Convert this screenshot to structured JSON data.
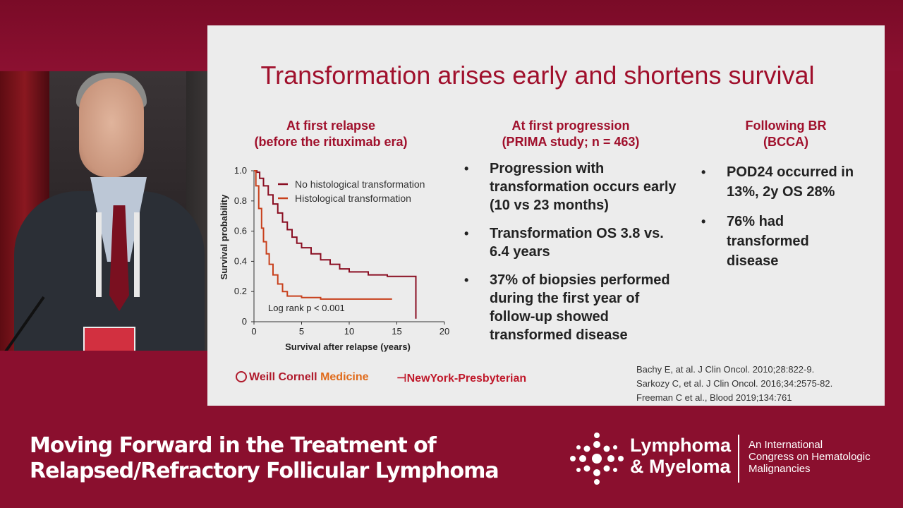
{
  "slide": {
    "title": "Transformation arises early and shortens survival",
    "columns": [
      {
        "heading_line1": "At first relapse",
        "heading_line2": "(before the rituximab era)"
      },
      {
        "heading_line1": "At first progression",
        "heading_line2": "(PRIMA study; n = 463)",
        "bullets": [
          "Progression with transformation occurs early (10 vs 23 months)",
          "Transformation OS 3.8 vs. 6.4 years",
          "37% of biopsies performed during the first year of follow-up showed transformed disease"
        ]
      },
      {
        "heading_line1": "Following BR",
        "heading_line2": "(BCCA)",
        "bullets": [
          "POD24 occurred in 13%, 2y OS 28%",
          "76% had transformed disease"
        ]
      }
    ],
    "references": [
      "Bachy E, at al. J Clin Oncol. 2010;28:822-9.",
      "Sarkozy C, et al. J Clin Oncol. 2016;34:2575-82.",
      "Freeman C et al., Blood 2019;134:761"
    ],
    "logos": {
      "wcm_part1": "Weill Cornell ",
      "wcm_part2": "Medicine",
      "nyp": "NewYork-Presbyterian"
    }
  },
  "chart_data": {
    "type": "line",
    "xlabel": "Survival after relapse (years)",
    "ylabel": "Survival probability",
    "xlim": [
      0,
      20
    ],
    "ylim": [
      0,
      1.0
    ],
    "x_ticks": [
      "0",
      "5",
      "10",
      "15",
      "20"
    ],
    "y_ticks": [
      "0",
      "0.2",
      "0.4",
      "0.6",
      "0.8",
      "1.0"
    ],
    "annotation": "Log rank p < 0.001",
    "legend_position": "top-right",
    "series": [
      {
        "name": "No histological transformation",
        "color": "#8a0e22",
        "x": [
          0,
          0.3,
          0.6,
          1,
          1.5,
          2,
          2.5,
          3,
          3.5,
          4,
          4.5,
          5,
          6,
          7,
          8,
          9,
          10,
          12,
          14,
          16,
          17,
          17
        ],
        "y": [
          1.0,
          0.99,
          0.95,
          0.9,
          0.84,
          0.78,
          0.72,
          0.66,
          0.61,
          0.56,
          0.52,
          0.49,
          0.45,
          0.41,
          0.38,
          0.35,
          0.33,
          0.31,
          0.3,
          0.3,
          0.3,
          0.02
        ]
      },
      {
        "name": "Histological transformation",
        "color": "#c8401c",
        "x": [
          0,
          0.2,
          0.5,
          0.8,
          1,
          1.3,
          1.6,
          2,
          2.5,
          3,
          3.5,
          5,
          7,
          10,
          14.5
        ],
        "y": [
          1.0,
          0.9,
          0.75,
          0.62,
          0.53,
          0.45,
          0.38,
          0.31,
          0.25,
          0.2,
          0.17,
          0.16,
          0.15,
          0.15,
          0.15
        ]
      }
    ]
  },
  "lower_third": {
    "title_line1": "Moving Forward in the Treatment of",
    "title_line2": "Relapsed/Refractory Follicular Lymphoma",
    "logo_line1": "Lymphoma",
    "logo_line2": "& Myeloma",
    "tagline_line1": "An International",
    "tagline_line2": "Congress on Hematologic",
    "tagline_line3": "Malignancies"
  }
}
